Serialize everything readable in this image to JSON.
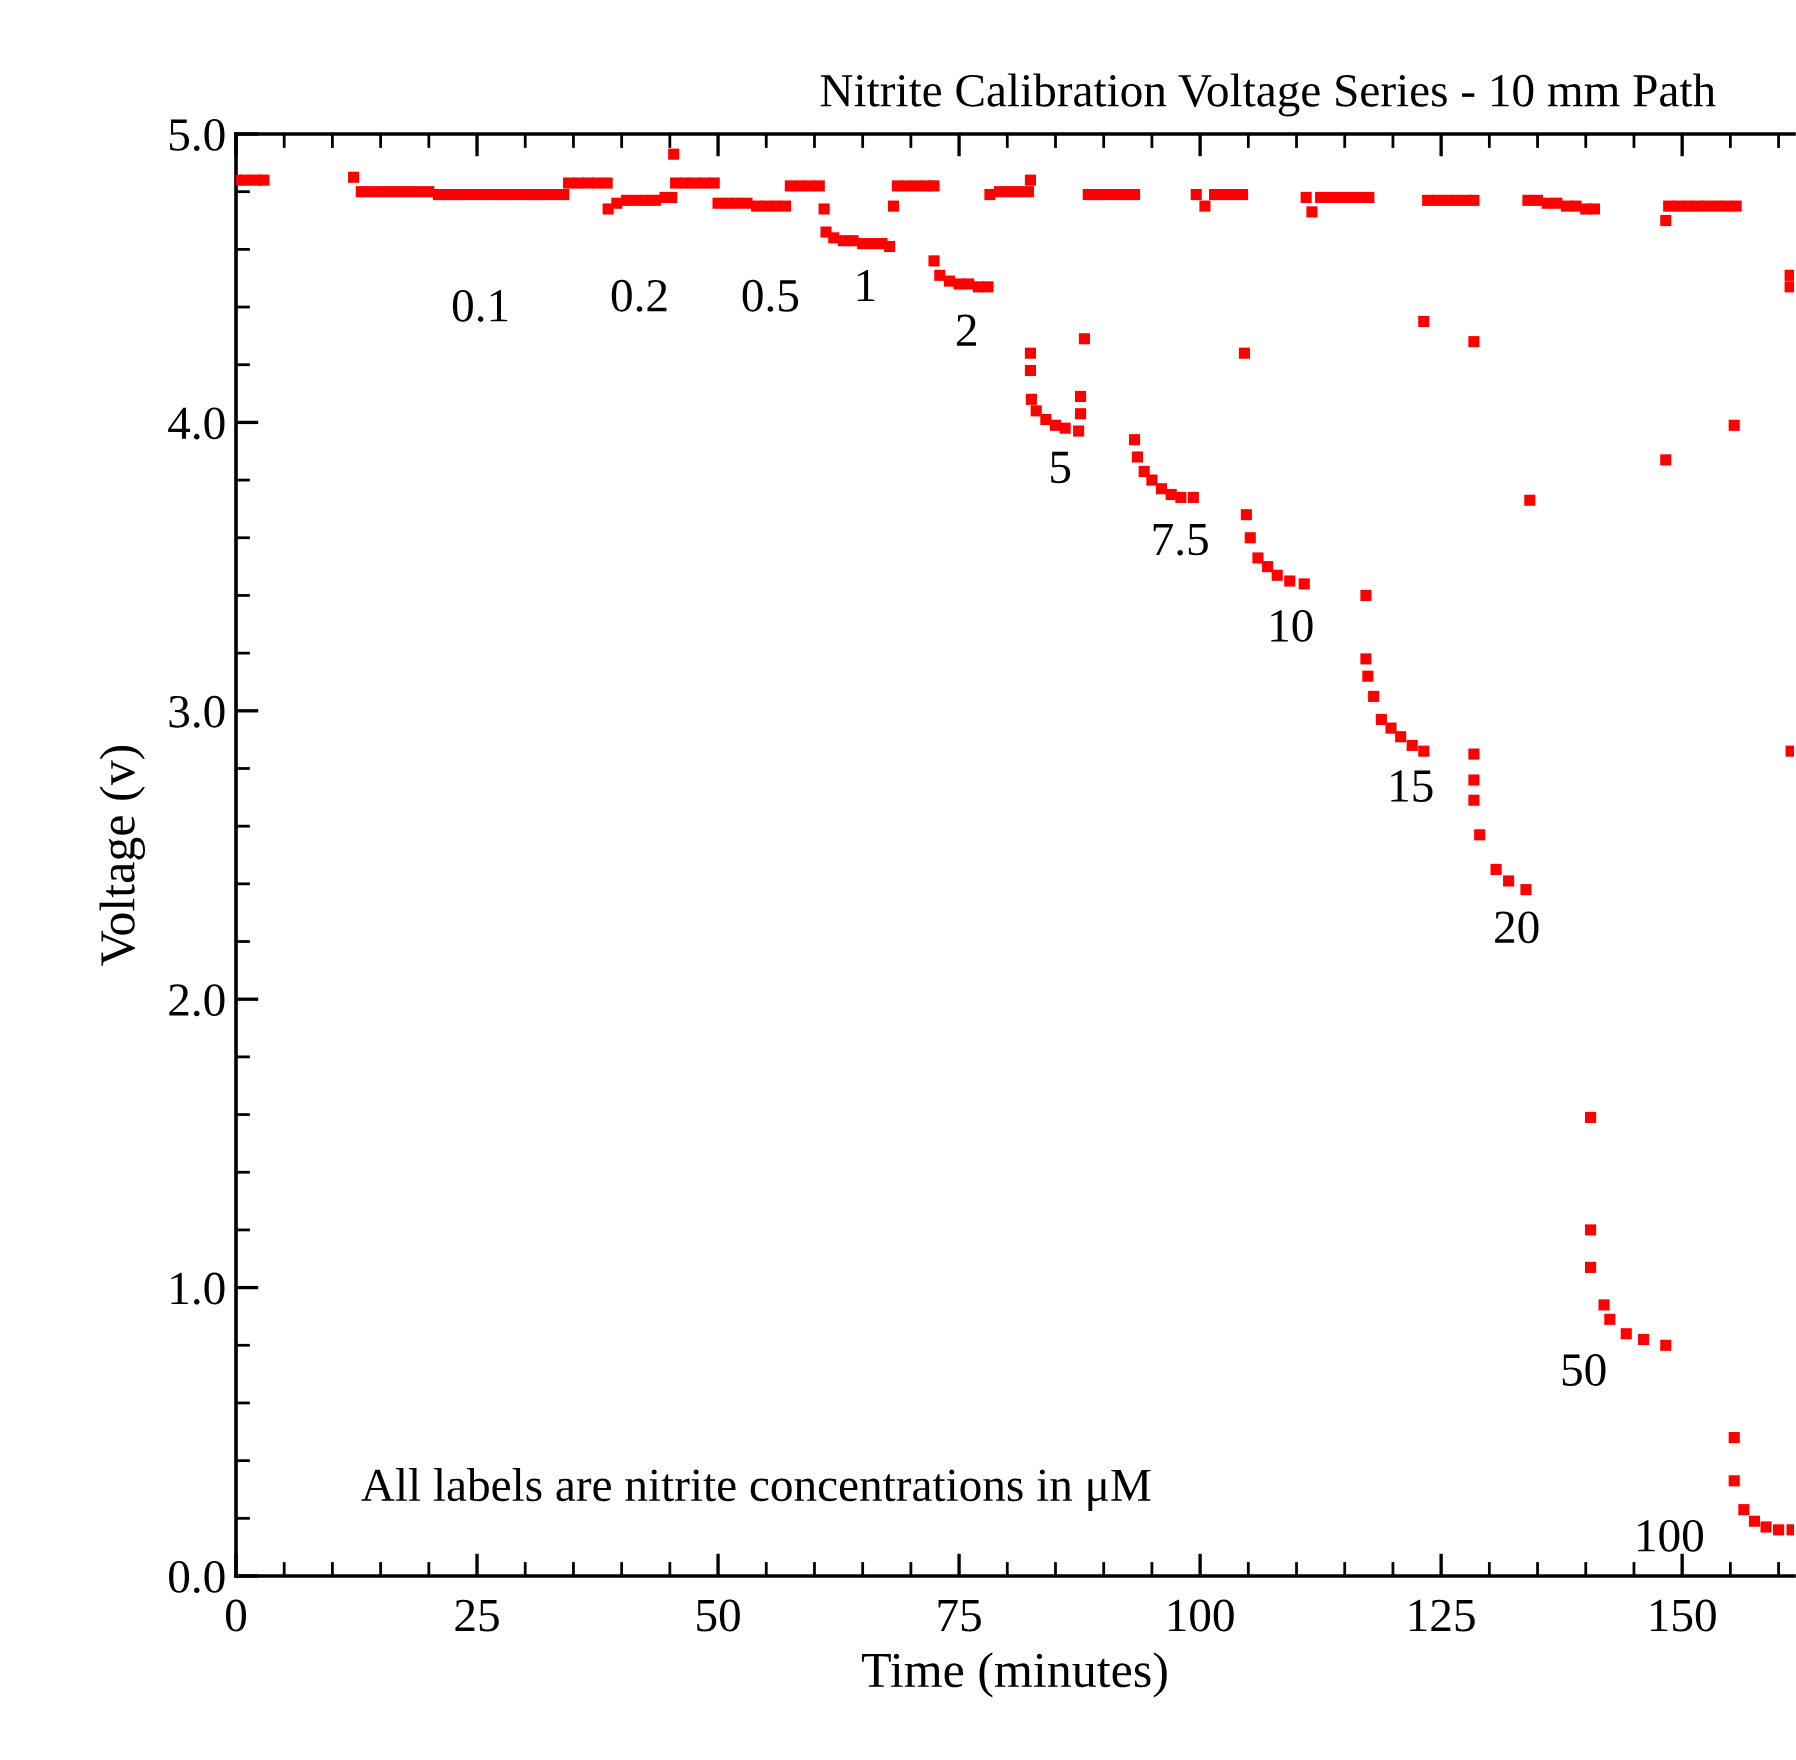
{
  "chart_data": {
    "type": "scatter",
    "title": "Nitrite Calibration Voltage Series - 10 mm Path",
    "xlabel": "Time (minutes)",
    "ylabel": "Voltage (v)",
    "marker": "square",
    "grid": false,
    "legend": false,
    "xlim": [
      0,
      161.6
    ],
    "xticks": [
      0,
      25,
      50,
      75,
      100,
      125,
      150
    ],
    "ylim": [
      0,
      5.0
    ],
    "yticks": [
      {
        "value": 0,
        "label": "0.0"
      },
      {
        "value": 1,
        "label": "1.0"
      },
      {
        "value": 2,
        "label": "2.0"
      },
      {
        "value": 3,
        "label": "3.0"
      },
      {
        "value": 4,
        "label": "4.0"
      },
      {
        "value": 5,
        "label": "5.0"
      }
    ],
    "series": [
      {
        "color": "#ff0000",
        "x": [
          0,
          1,
          2,
          2.9,
          12.2
        ],
        "values": [
          4.84,
          4.84,
          4.84,
          4.84,
          4.85
        ]
      },
      {
        "color": "#ff0000",
        "x": [
          13,
          14,
          15,
          16,
          17,
          18,
          19,
          20,
          21,
          22,
          23,
          24,
          25,
          26,
          27,
          28,
          29,
          30,
          31,
          32,
          33,
          34
        ],
        "values": [
          4.8,
          4.8,
          4.8,
          4.8,
          4.8,
          4.8,
          4.8,
          4.8,
          4.79,
          4.79,
          4.79,
          4.79,
          4.79,
          4.79,
          4.79,
          4.79,
          4.79,
          4.79,
          4.79,
          4.79,
          4.79,
          4.79
        ]
      },
      {
        "color": "#ff0000",
        "x": [
          34.5,
          35.5,
          36.5,
          37.5,
          38.5,
          38.6,
          39.5,
          40.5,
          41.5,
          42.5,
          43.5,
          44.5,
          45.2,
          45.4
        ],
        "values": [
          4.83,
          4.83,
          4.83,
          4.83,
          4.83,
          4.74,
          4.76,
          4.77,
          4.77,
          4.77,
          4.77,
          4.78,
          4.78,
          4.93
        ]
      },
      {
        "color": "#ff0000",
        "x": [
          45.6,
          46.6,
          47.6,
          48.6,
          49.6,
          50,
          51,
          52,
          53,
          54,
          55,
          56,
          57
        ],
        "values": [
          4.83,
          4.83,
          4.83,
          4.83,
          4.83,
          4.76,
          4.76,
          4.76,
          4.76,
          4.75,
          4.75,
          4.75,
          4.75
        ]
      },
      {
        "color": "#ff0000",
        "x": [
          57.5,
          58.5,
          59.5,
          60.5,
          61,
          61.2,
          62,
          63,
          64,
          65,
          66,
          67,
          67.8,
          68.2
        ],
        "values": [
          4.82,
          4.82,
          4.82,
          4.82,
          4.74,
          4.66,
          4.64,
          4.63,
          4.63,
          4.62,
          4.62,
          4.62,
          4.61,
          4.75
        ]
      },
      {
        "color": "#ff0000",
        "x": [
          68.6,
          69.6,
          70.6,
          71.6,
          72.4,
          72.4,
          73,
          74,
          75,
          76,
          77,
          78
        ],
        "values": [
          4.82,
          4.82,
          4.82,
          4.82,
          4.82,
          4.56,
          4.51,
          4.49,
          4.48,
          4.48,
          4.47,
          4.47
        ]
      },
      {
        "color": "#ff0000",
        "x": [
          78.2,
          79.2,
          80.2,
          81.2,
          82.2,
          82.4,
          82.4,
          82.4,
          82.5,
          83,
          84,
          85,
          86,
          87.4,
          87.6,
          87.6,
          88
        ],
        "values": [
          4.79,
          4.8,
          4.8,
          4.8,
          4.8,
          4.84,
          4.24,
          4.18,
          4.08,
          4.04,
          4.01,
          3.99,
          3.98,
          3.97,
          4.09,
          4.03,
          4.29
        ]
      },
      {
        "color": "#ff0000",
        "x": [
          88.4,
          89.4,
          90.4,
          91.4,
          92.4,
          93.2,
          93.2,
          93.5,
          94.2,
          95,
          96,
          97,
          98,
          99.3
        ],
        "values": [
          4.79,
          4.79,
          4.79,
          4.79,
          4.79,
          4.79,
          3.94,
          3.88,
          3.83,
          3.8,
          3.77,
          3.75,
          3.74,
          3.74
        ]
      },
      {
        "color": "#ff0000",
        "x": [
          99.6,
          100.5,
          101.5,
          102.5,
          103.5,
          104.4,
          104.6,
          104.8,
          105.2,
          106,
          107,
          108,
          109.3,
          110.8
        ],
        "values": [
          4.79,
          4.75,
          4.79,
          4.79,
          4.79,
          4.79,
          4.24,
          3.68,
          3.6,
          3.53,
          3.5,
          3.47,
          3.45,
          3.44
        ]
      },
      {
        "color": "#ff0000",
        "x": [
          111,
          111.6,
          112.5,
          113.5,
          114.5,
          115.5,
          116.5,
          117.5,
          117.2,
          117.2,
          117.4,
          118,
          118.8,
          119.8,
          120.8,
          122,
          123.2
        ],
        "values": [
          4.78,
          4.73,
          4.78,
          4.78,
          4.78,
          4.78,
          4.78,
          4.78,
          3.4,
          3.18,
          3.12,
          3.05,
          2.97,
          2.94,
          2.91,
          2.88,
          2.86
        ]
      },
      {
        "color": "#ff0000",
        "x": [
          123.2,
          123.6,
          124.6,
          125.6,
          126.6,
          127.6,
          128.4,
          128.4,
          128.4,
          128.4,
          128.4,
          129,
          130.7,
          132,
          133.8,
          134.2
        ],
        "values": [
          4.35,
          4.77,
          4.77,
          4.77,
          4.77,
          4.77,
          4.77,
          4.28,
          2.85,
          2.76,
          2.69,
          2.57,
          2.45,
          2.41,
          2.38,
          3.73
        ]
      },
      {
        "color": "#ff0000",
        "x": [
          134,
          135,
          136,
          137,
          138,
          139,
          140,
          140.9,
          140.5,
          140.5,
          140.5,
          141.9,
          142.5,
          144.2,
          146,
          148.3
        ],
        "values": [
          4.77,
          4.77,
          4.76,
          4.76,
          4.75,
          4.75,
          4.74,
          4.74,
          1.59,
          1.2,
          1.07,
          0.94,
          0.89,
          0.84,
          0.82,
          0.8
        ]
      },
      {
        "color": "#ff0000",
        "x": [
          148.3,
          148.3,
          148.6,
          149.6,
          150.6,
          151.6,
          152.6,
          153.6,
          154.6,
          155.6,
          155.4,
          155.4,
          155.4,
          156.4,
          157.5,
          158.7,
          160,
          161.4
        ],
        "values": [
          4.7,
          3.87,
          4.75,
          4.75,
          4.75,
          4.75,
          4.75,
          4.75,
          4.75,
          4.75,
          3.99,
          0.48,
          0.33,
          0.23,
          0.19,
          0.17,
          0.16,
          0.16
        ]
      },
      {
        "color": "#ff0000",
        "x": [
          161.2,
          161.2,
          161.3
        ],
        "values": [
          4.51,
          4.47,
          2.86
        ]
      }
    ],
    "annotations": [
      "0.1",
      "0.2",
      "0.5",
      "1",
      "2",
      "5",
      "7.5",
      "10",
      "15",
      "20",
      "50",
      "100",
      "All labels are nitrite concentrations in μM"
    ]
  }
}
